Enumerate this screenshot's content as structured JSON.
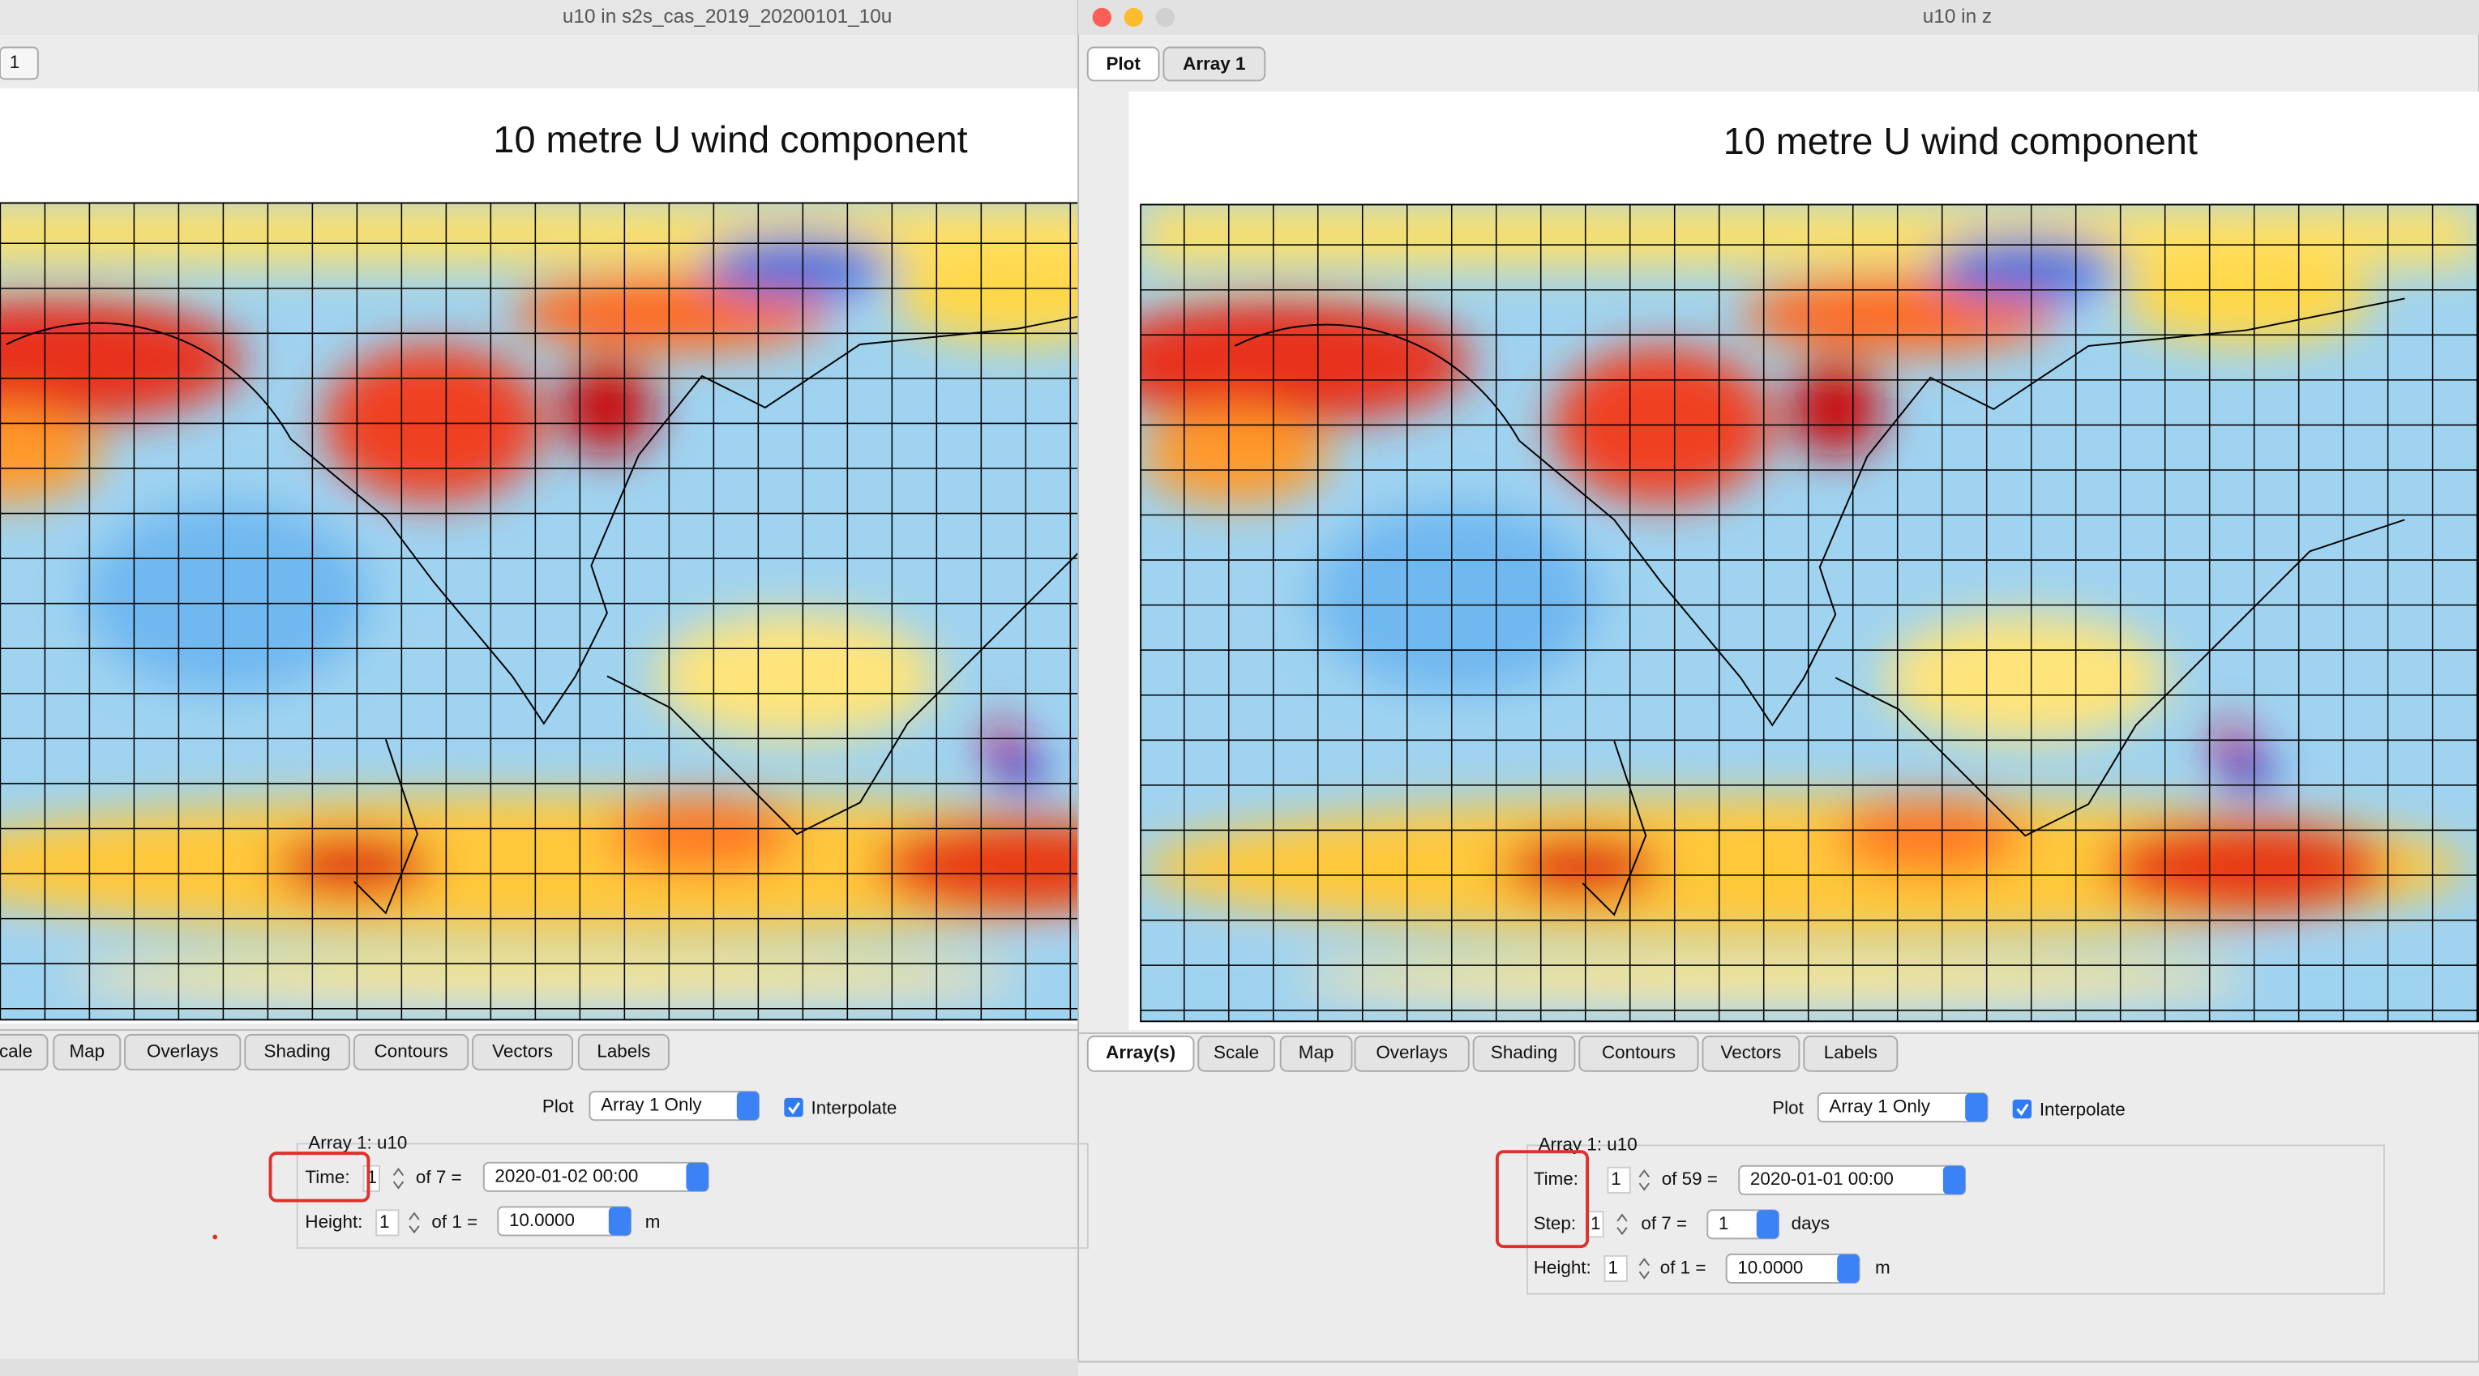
{
  "left_window": {
    "title": "u10 in s2s_cas_2019_20200101_10u",
    "tabs_top": [
      "1"
    ],
    "plot_title": "10 metre U wind component",
    "tabs": [
      "cale",
      "Map",
      "Overlays",
      "Shading",
      "Contours",
      "Vectors",
      "Labels"
    ],
    "plot_label": "Plot",
    "plot_select": "Array 1 Only",
    "interpolate": "Interpolate",
    "group": "Array 1: u10",
    "time": {
      "label": "Time:",
      "index": "1",
      "of": "of 7 =",
      "value": "2020-01-02 00:00"
    },
    "height": {
      "label": "Height:",
      "index": "1",
      "of": "of 1 =",
      "value": "10.0000",
      "unit": "m"
    }
  },
  "right_window": {
    "title": "u10 in z",
    "tabs_top": [
      "Plot",
      "Array 1"
    ],
    "plot_title": "10 metre U wind component",
    "tabs": [
      "Array(s)",
      "Scale",
      "Map",
      "Overlays",
      "Shading",
      "Contours",
      "Vectors",
      "Labels"
    ],
    "plot_label": "Plot",
    "plot_select": "Array 1 Only",
    "interpolate": "Interpolate",
    "group": "Array 1: u10",
    "time": {
      "label": "Time:",
      "index": "1",
      "of": "of 59 =",
      "value": "2020-01-01 00:00"
    },
    "step": {
      "label": "Step:",
      "index": "1",
      "of": "of 7 =",
      "value": "1",
      "unit": "days"
    },
    "height": {
      "label": "Height:",
      "index": "1",
      "of": "of 1 =",
      "value": "10.0000",
      "unit": "m"
    }
  }
}
